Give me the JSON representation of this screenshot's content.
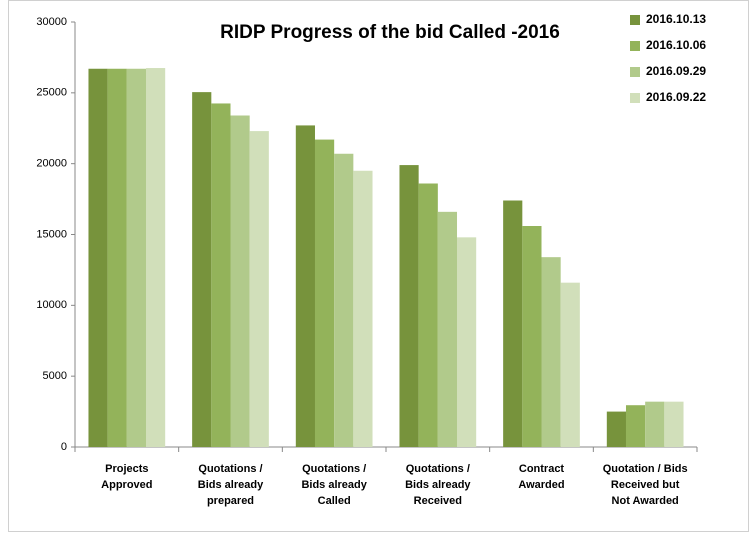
{
  "chart_data": {
    "type": "bar",
    "title": "RIDP Progress of the bid Called -2016",
    "categories": [
      "Projects\nApproved",
      "Quotations /\nBids already\nprepared",
      "Quotations /\nBids already\nCalled",
      "Quotations /\nBids already\nReceived",
      "Contract\nAwarded",
      "Quotation / Bids\nReceived but\nNot Awarded"
    ],
    "series": [
      {
        "name": "2016.10.13",
        "color": "#77933c",
        "values": [
          26700,
          25050,
          22700,
          19900,
          17400,
          2500
        ]
      },
      {
        "name": "2016.10.06",
        "color": "#93b35a",
        "values": [
          26700,
          24250,
          21700,
          18600,
          15600,
          2950
        ]
      },
      {
        "name": "2016.09.29",
        "color": "#b1ca8b",
        "values": [
          26700,
          23400,
          20700,
          16600,
          13400,
          3200
        ]
      },
      {
        "name": "2016.09.22",
        "color": "#d1dfba",
        "values": [
          26750,
          22300,
          19500,
          14800,
          11600,
          3200
        ]
      }
    ],
    "ylim": [
      0,
      30000
    ],
    "yticks": [
      0,
      5000,
      10000,
      15000,
      20000,
      25000,
      30000
    ],
    "grid": false,
    "legend": "right"
  }
}
